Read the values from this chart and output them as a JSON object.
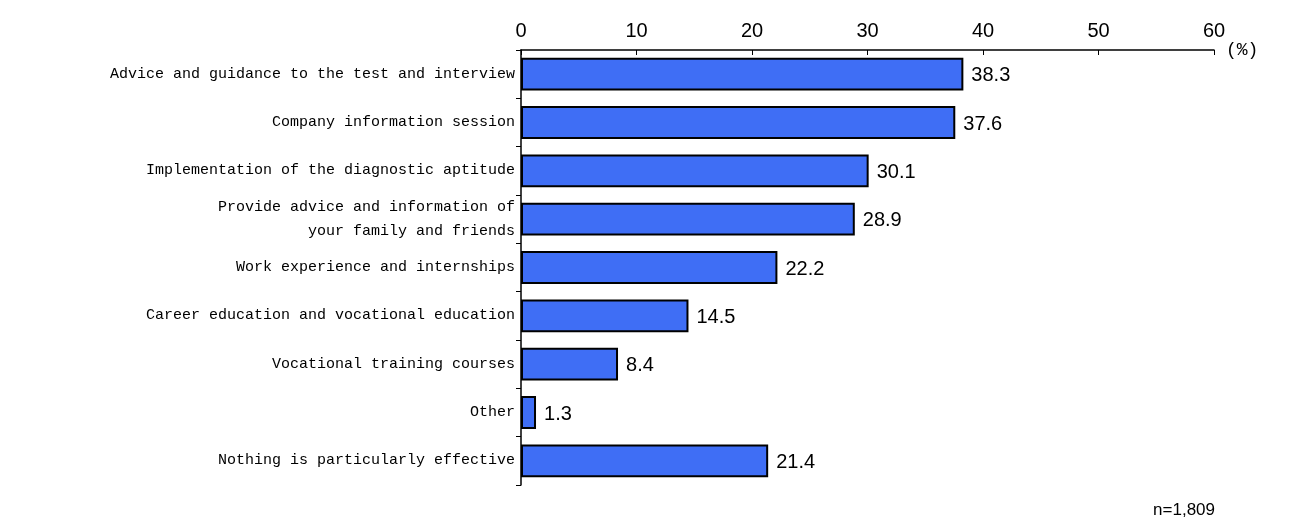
{
  "chart_data": {
    "type": "bar",
    "orientation": "horizontal",
    "categories": [
      "Advice and guidance to the test and interview",
      "Company information session",
      "Implementation of the diagnostic aptitude",
      "Provide advice and information of\nyour family and friends",
      "Work experience and internships",
      "Career education and vocational education",
      "Vocational training courses",
      "Other",
      "Nothing is particularly effective"
    ],
    "values": [
      38.3,
      37.6,
      30.1,
      28.9,
      22.2,
      14.5,
      8.4,
      1.3,
      21.4
    ],
    "color": "#3f6ef5",
    "xlim": [
      0,
      60
    ],
    "xticks": [
      0,
      10,
      20,
      30,
      40,
      50,
      60
    ],
    "xlabel": "(%)",
    "data_labels": true,
    "annotations": [
      "n=1,809"
    ]
  }
}
